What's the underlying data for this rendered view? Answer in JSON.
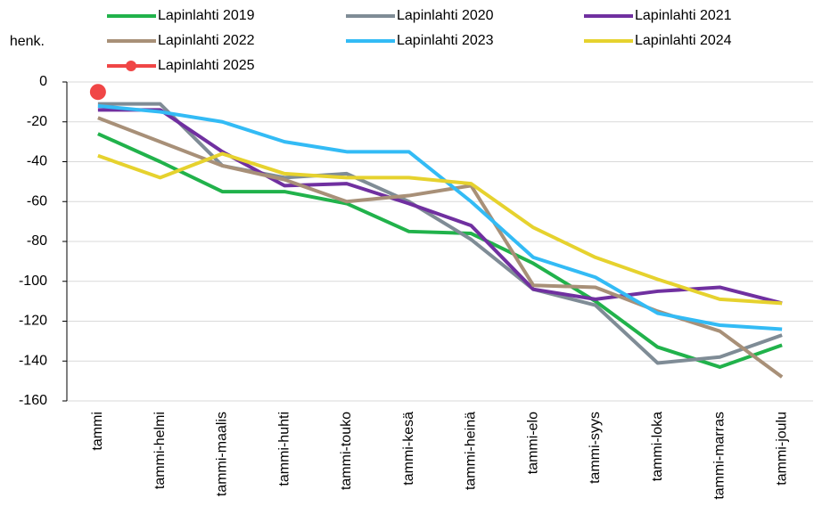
{
  "chart_data": {
    "type": "line",
    "ylabel": "henk.",
    "categories": [
      "tammi",
      "tammi-helmi",
      "tammi-maalis",
      "tammi-huhti",
      "tammi-touko",
      "tammi-kesä",
      "tammi-heinä",
      "tammi-elo",
      "tammi-syys",
      "tammi-loka",
      "tammi-marras",
      "tammi-joulu"
    ],
    "series": [
      {
        "name": "Lapinlahti 2019",
        "color": "#21b24b",
        "values": [
          -26,
          -40,
          -55,
          -55,
          -61,
          -75,
          -76,
          -91,
          -110,
          -133,
          -143,
          -132
        ]
      },
      {
        "name": "Lapinlahti 2020",
        "color": "#7f8c96",
        "values": [
          -11,
          -11,
          -42,
          -48,
          -46,
          -60,
          -79,
          -104,
          -112,
          -141,
          -138,
          -127
        ]
      },
      {
        "name": "Lapinlahti 2021",
        "color": "#7030a0",
        "values": [
          -14,
          -14,
          -35,
          -52,
          -51,
          -61,
          -72,
          -104,
          -109,
          -105,
          -103,
          -111
        ]
      },
      {
        "name": "Lapinlahti 2022",
        "color": "#a89078",
        "values": [
          -18,
          -30,
          -42,
          -49,
          -60,
          -57,
          -52,
          -102,
          -103,
          -115,
          -125,
          -148
        ]
      },
      {
        "name": "Lapinlahti 2023",
        "color": "#33bbf5",
        "values": [
          -12,
          -15,
          -20,
          -30,
          -35,
          -35,
          -60,
          -88,
          -98,
          -116,
          -122,
          -124
        ]
      },
      {
        "name": "Lapinlahti 2024",
        "color": "#e6d22e",
        "values": [
          -37,
          -48,
          -36,
          -46,
          -48,
          -48,
          -51,
          -73,
          -88,
          -99,
          -109,
          -111
        ]
      },
      {
        "name": "Lapinlahti 2025",
        "color": "#f04646",
        "marker": "circle",
        "values": [
          -5,
          null,
          null,
          null,
          null,
          null,
          null,
          null,
          null,
          null,
          null,
          null
        ]
      }
    ],
    "ylim": [
      -160,
      0
    ],
    "yticks": [
      0,
      -20,
      -40,
      -60,
      -80,
      -100,
      -120,
      -140,
      -160
    ],
    "grid": true
  }
}
